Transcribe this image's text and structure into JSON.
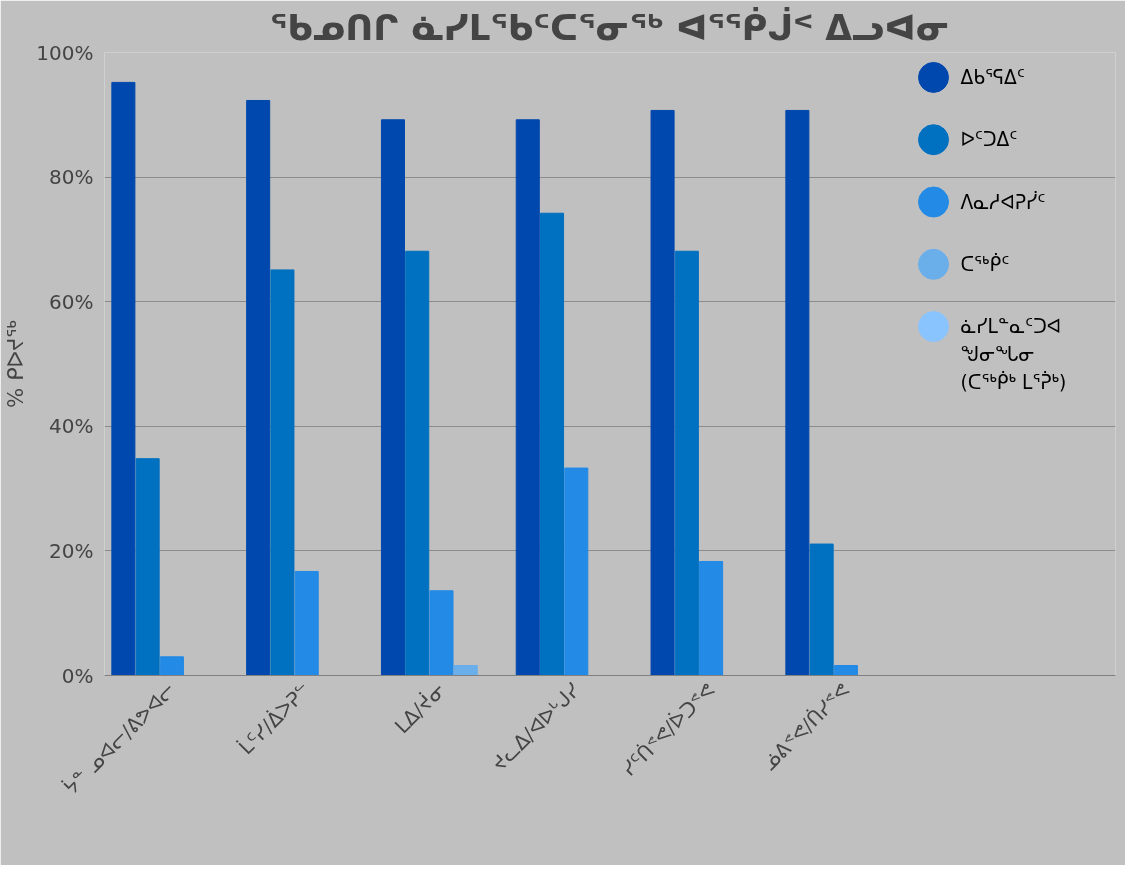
{
  "chart_data": {
    "type": "bar",
    "title": "ᖃᓄᑎᒋ ᓈᓯᒪᖃᑦᑕᕐᓂᖅ ᐊᕐᖀᒎᑉ ᐃᓗᐊᓂ",
    "ylabel": "% ᑭᐅᔪᖅ",
    "categories": [
      "ᔮᓐ ᓄᐊᓕ/ᕕᕗᐊᓕ",
      "ᒫᑦᓯ/ᐄᐳᕈᓪ",
      "ᒪᐃ/ᔫᓂ",
      "ᔪᓚᐃ/ᐊᐅᒡᒍᓯ",
      "ᓯᑦᑏᕝᕙ/ᐆᑐᕝᕙ",
      "ᓅᕕᕝᕙ/ᑏᓯᕝᕙ"
    ],
    "series": [
      {
        "name": "ᐃᑲᕐᕋᐃᑦ",
        "color": "#0048ad",
        "values": [
          95.2,
          92.3,
          89.2,
          89.2,
          90.7,
          90.7
        ]
      },
      {
        "name": "ᐅᑦᑐᐃᑦ",
        "color": "#0070c0",
        "values": [
          34.8,
          65.1,
          68.1,
          74.2,
          68.1,
          21.1
        ]
      },
      {
        "name": "ᐱᓇᓱᐊᕈᓰᑦ",
        "color": "#238ae6",
        "values": [
          3.0,
          16.7,
          13.6,
          33.3,
          18.3,
          1.6
        ]
      },
      {
        "name": "ᑕᖅᑮᑦ",
        "color": "#6aaeea",
        "values": [
          null,
          null,
          1.6,
          null,
          null,
          null
        ]
      },
      {
        "name": "ᓈᓯᒪᓐᓇᑦᑐᐊ ᖑᓂᖓᓂ (ᑕᖅᑮᒃ ᒪᕐᕉᒃ)",
        "color": "#8ac4ff",
        "values": [
          null,
          null,
          null,
          null,
          null,
          null
        ]
      }
    ],
    "ylim": [
      0,
      100
    ],
    "yticks": [
      {
        "value": 0,
        "label": "0%"
      },
      {
        "value": 20,
        "label": "20%"
      },
      {
        "value": 40,
        "label": "40%"
      },
      {
        "value": 60,
        "label": "60%"
      },
      {
        "value": 80,
        "label": "80%"
      },
      {
        "value": 100,
        "label": "100%"
      }
    ],
    "grid": "y",
    "legend": "right"
  }
}
